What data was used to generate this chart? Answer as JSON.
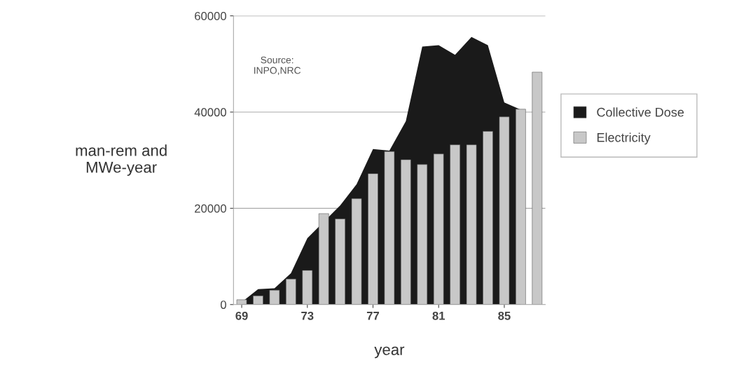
{
  "chart_data": {
    "type": "bar",
    "xlabel": "year",
    "ylabel": "man-rem and\nMWe-year",
    "x": [
      69,
      70,
      71,
      72,
      73,
      74,
      75,
      76,
      77,
      78,
      79,
      80,
      81,
      82,
      83,
      84,
      85,
      86,
      87
    ],
    "series": [
      {
        "name": "Collective Dose",
        "type": "area",
        "color": "#1a1a1a",
        "x": [
          69,
          70,
          71,
          72,
          73,
          75,
          76,
          77,
          78,
          79,
          80,
          81,
          82,
          83,
          84,
          85,
          86
        ],
        "values": [
          500,
          3200,
          3400,
          6500,
          13800,
          20600,
          25000,
          32300,
          32000,
          38100,
          53600,
          53900,
          51900,
          55600,
          53900,
          42000,
          40500
        ]
      },
      {
        "name": "Electricity",
        "color": "#c8c8c8",
        "values": [
          1000,
          1800,
          3000,
          5300,
          7100,
          18900,
          17800,
          22000,
          27200,
          31800,
          30100,
          29100,
          31300,
          33200,
          33200,
          36000,
          39000,
          40600,
          48300
        ]
      }
    ],
    "xlim": [
      68.5,
      87.5
    ],
    "xticks": [
      69,
      73,
      77,
      81,
      85
    ],
    "ylim": [
      0,
      60000
    ],
    "yticks": [
      0,
      20000,
      40000,
      60000
    ],
    "grid": "y",
    "legend": "right",
    "annotations": [
      {
        "text": "Source:\nINPO,NRC"
      }
    ]
  }
}
